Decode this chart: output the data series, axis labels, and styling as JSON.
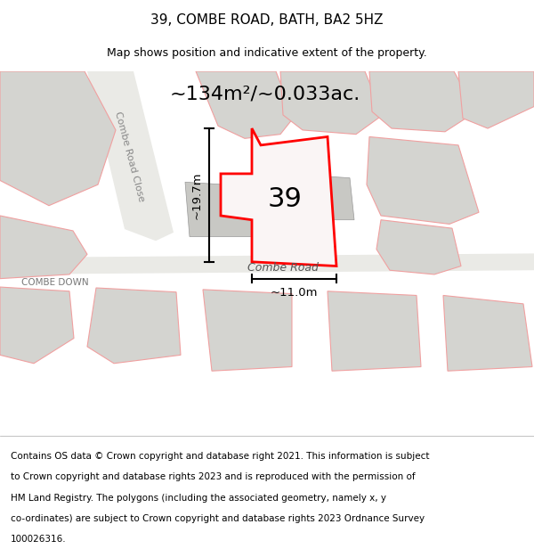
{
  "title": "39, COMBE ROAD, BATH, BA2 5HZ",
  "subtitle": "Map shows position and indicative extent of the property.",
  "area_label": "~134m²/~0.033ac.",
  "width_label": "~11.0m",
  "height_label": "~19.7m",
  "number_label": "39",
  "road_label_1": "Combe Road",
  "road_label_2": "Combe Road Close",
  "road_label_3": "COMBE DOWN",
  "footer_lines": [
    "Contains OS data © Crown copyright and database right 2021. This information is subject",
    "to Crown copyright and database rights 2023 and is reproduced with the permission of",
    "HM Land Registry. The polygons (including the associated geometry, namely x, y",
    "co-ordinates) are subject to Crown copyright and database rights 2023 Ordnance Survey",
    "100026316."
  ],
  "map_bg": "#f7f7f5",
  "highlight_color": "#ff0000",
  "outline_color": "#f0a0a0",
  "building_color": "#c8c8c4",
  "title_fontsize": 11,
  "subtitle_fontsize": 9,
  "footer_fontsize": 7.5
}
